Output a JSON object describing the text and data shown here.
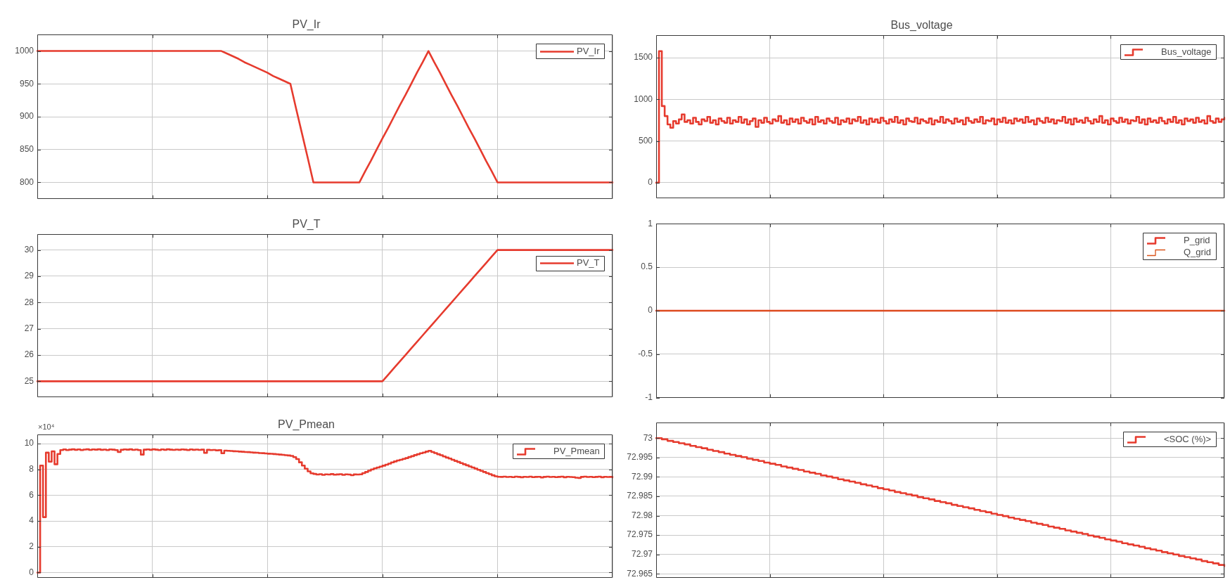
{
  "chart_data": [
    {
      "type": "line",
      "title": "PV_Ir",
      "categories": [
        null,
        null,
        null,
        null,
        null,
        null,
        null,
        null,
        null,
        null,
        null,
        null,
        null,
        null,
        null,
        null,
        null,
        null,
        null,
        null,
        null,
        null,
        null,
        null,
        null,
        null,
        null,
        null,
        null,
        null,
        null,
        null,
        null,
        null,
        null,
        null,
        null,
        null,
        null,
        null,
        null,
        null,
        null,
        null,
        null,
        null,
        null,
        null,
        null,
        null,
        null,
        null,
        null,
        null,
        null,
        null,
        null,
        null,
        null,
        null,
        null,
        null,
        null,
        null,
        null,
        null,
        null,
        null,
        null,
        null,
        null,
        null,
        null,
        null,
        null,
        null,
        null,
        null,
        null,
        null,
        null,
        null,
        null,
        null,
        null,
        null,
        null,
        null,
        null,
        null,
        null,
        null,
        null,
        null,
        null,
        null,
        null,
        null,
        null,
        null,
        null
      ],
      "series": [
        {
          "name": "PV_Ir",
          "color": "#e63b2e",
          "values": [
            1000,
            1000,
            1000,
            1000,
            1000,
            1000,
            1000,
            1000,
            1000,
            1000,
            1000,
            1000,
            1000,
            1000,
            1000,
            1000,
            1000,
            1000,
            1000,
            1000,
            1000,
            1000,
            1000,
            1000,
            1000,
            1000,
            1000,
            1000,
            1000,
            1000,
            1000,
            1000,
            1000,
            996,
            992,
            988,
            983,
            979,
            975,
            971,
            967,
            962,
            958,
            954,
            950,
            912,
            875,
            838,
            800,
            800,
            800,
            800,
            800,
            800,
            800,
            800,
            800,
            817,
            833,
            850,
            867,
            883,
            900,
            917,
            933,
            950,
            967,
            983,
            1000,
            983,
            967,
            950,
            933,
            917,
            900,
            883,
            867,
            850,
            833,
            817,
            800,
            800,
            800,
            800,
            800,
            800,
            800,
            800,
            800,
            800,
            800,
            800,
            800,
            800,
            800,
            800,
            800,
            800,
            800,
            800,
            800
          ]
        }
      ],
      "ylim": [
        775,
        1025
      ],
      "yticks": [
        800,
        850,
        900,
        950,
        1000
      ],
      "grid": true,
      "legend": "top right"
    },
    {
      "type": "step",
      "title": "Bus_voltage",
      "categories": [
        null,
        null,
        null,
        null,
        null,
        null,
        null,
        null,
        null,
        null,
        null,
        null,
        null,
        null,
        null,
        null,
        null,
        null,
        null,
        null,
        null,
        null,
        null,
        null,
        null,
        null,
        null,
        null,
        null,
        null,
        null,
        null,
        null,
        null,
        null,
        null,
        null,
        null,
        null,
        null,
        null,
        null,
        null,
        null,
        null,
        null,
        null,
        null,
        null,
        null,
        null,
        null,
        null,
        null,
        null,
        null,
        null,
        null,
        null,
        null,
        null,
        null,
        null,
        null,
        null,
        null,
        null,
        null,
        null,
        null,
        null,
        null,
        null,
        null,
        null,
        null,
        null,
        null,
        null,
        null,
        null,
        null,
        null,
        null,
        null,
        null,
        null,
        null,
        null,
        null,
        null,
        null,
        null,
        null,
        null,
        null,
        null,
        null,
        null,
        null,
        null,
        null,
        null,
        null,
        null,
        null,
        null,
        null,
        null,
        null,
        null,
        null,
        null,
        null,
        null,
        null,
        null,
        null,
        null,
        null,
        null,
        null,
        null,
        null,
        null,
        null,
        null,
        null,
        null,
        null,
        null,
        null,
        null,
        null,
        null,
        null,
        null,
        null,
        null,
        null,
        null,
        null,
        null,
        null,
        null,
        null,
        null,
        null,
        null,
        null,
        null,
        null,
        null,
        null,
        null,
        null,
        null,
        null,
        null,
        null,
        null,
        null,
        null,
        null,
        null,
        null,
        null,
        null,
        null,
        null,
        null,
        null,
        null,
        null,
        null,
        null,
        null,
        null,
        null,
        null,
        null,
        null,
        null,
        null,
        null,
        null,
        null,
        null,
        null,
        null,
        null,
        null,
        null,
        null,
        null,
        null,
        null,
        null,
        null,
        null,
        null
      ],
      "series": [
        {
          "name": "Bus_voltage",
          "color": "#e63b2e",
          "values": [
            0,
            1580,
            920,
            800,
            700,
            660,
            740,
            710,
            760,
            820,
            730,
            750,
            710,
            780,
            730,
            700,
            760,
            740,
            790,
            720,
            750,
            700,
            770,
            740,
            720,
            780,
            710,
            750,
            730,
            790,
            720,
            760,
            700,
            740,
            770,
            670,
            750,
            720,
            780,
            730,
            710,
            760,
            740,
            800,
            720,
            750,
            700,
            770,
            730,
            760,
            710,
            780,
            740,
            720,
            760,
            700,
            790,
            730,
            750,
            710,
            770,
            740,
            720,
            780,
            700,
            750,
            730,
            770,
            710,
            760,
            740,
            790,
            720,
            750,
            700,
            770,
            730,
            760,
            720,
            780,
            740,
            710,
            760,
            730,
            790,
            720,
            750,
            700,
            770,
            740,
            730,
            780,
            710,
            760,
            740,
            720,
            770,
            700,
            750,
            730,
            790,
            720,
            760,
            740,
            710,
            770,
            730,
            750,
            700,
            780,
            740,
            720,
            760,
            730,
            790,
            710,
            750,
            740,
            770,
            700,
            760,
            730,
            780,
            720,
            750,
            710,
            770,
            740,
            760,
            720,
            790,
            730,
            750,
            700,
            770,
            740,
            720,
            780,
            730,
            760,
            710,
            750,
            740,
            790,
            720,
            760,
            700,
            770,
            730,
            750,
            720,
            780,
            740,
            710,
            760,
            730,
            800,
            720,
            750,
            700,
            770,
            740,
            720,
            780,
            730,
            760,
            710,
            750,
            740,
            790,
            720,
            760,
            700,
            770,
            730,
            750,
            720,
            780,
            740,
            710,
            760,
            730,
            790,
            720,
            750,
            700,
            770,
            740,
            760,
            720,
            780,
            730,
            750,
            710,
            800,
            740,
            720,
            770,
            730,
            760,
            780
          ]
        }
      ],
      "ylim": [
        -185,
        1770
      ],
      "yticks": [
        0,
        500,
        1000,
        1500
      ],
      "grid": true,
      "legend": "top right"
    },
    {
      "type": "line",
      "title": "PV_T",
      "categories": [
        null,
        null,
        null,
        null,
        null,
        null,
        null,
        null,
        null,
        null,
        null,
        null,
        null,
        null,
        null,
        null,
        null,
        null,
        null,
        null,
        null,
        null,
        null,
        null,
        null,
        null,
        null,
        null,
        null,
        null,
        null,
        null,
        null,
        null,
        null,
        null,
        null,
        null,
        null,
        null,
        null,
        null,
        null,
        null,
        null,
        null,
        null,
        null,
        null,
        null,
        null,
        null,
        null,
        null,
        null,
        null,
        null,
        null,
        null,
        null,
        null,
        null,
        null,
        null,
        null,
        null,
        null,
        null,
        null,
        null,
        null,
        null,
        null,
        null,
        null,
        null,
        null,
        null,
        null,
        null,
        null,
        null,
        null,
        null,
        null,
        null,
        null,
        null,
        null,
        null,
        null,
        null,
        null,
        null,
        null,
        null,
        null,
        null,
        null,
        null,
        null
      ],
      "series": [
        {
          "name": "PV_T",
          "color": "#e63b2e",
          "values": [
            25,
            25,
            25,
            25,
            25,
            25,
            25,
            25,
            25,
            25,
            25,
            25,
            25,
            25,
            25,
            25,
            25,
            25,
            25,
            25,
            25,
            25,
            25,
            25,
            25,
            25,
            25,
            25,
            25,
            25,
            25,
            25,
            25,
            25,
            25,
            25,
            25,
            25,
            25,
            25,
            25,
            25,
            25,
            25,
            25,
            25,
            25,
            25,
            25,
            25,
            25,
            25,
            25,
            25,
            25,
            25,
            25,
            25,
            25,
            25,
            25,
            25.25,
            25.5,
            25.75,
            26,
            26.25,
            26.5,
            26.75,
            27,
            27.25,
            27.5,
            27.75,
            28,
            28.25,
            28.5,
            28.75,
            29,
            29.25,
            29.5,
            29.75,
            30,
            30,
            30,
            30,
            30,
            30,
            30,
            30,
            30,
            30,
            30,
            30,
            30,
            30,
            30,
            30,
            30,
            30,
            30,
            30,
            30
          ]
        }
      ],
      "ylim": [
        24.4,
        30.6
      ],
      "yticks": [
        25,
        26,
        27,
        28,
        29,
        30
      ],
      "grid": true,
      "legend": "top right"
    },
    {
      "type": "step",
      "categories": [
        null,
        null,
        null,
        null,
        null,
        null,
        null,
        null,
        null,
        null,
        null,
        null,
        null,
        null,
        null,
        null,
        null,
        null,
        null,
        null,
        null,
        null,
        null,
        null,
        null,
        null,
        null,
        null,
        null,
        null,
        null,
        null,
        null,
        null,
        null,
        null,
        null,
        null,
        null,
        null,
        null,
        null,
        null,
        null,
        null,
        null,
        null,
        null,
        null,
        null,
        null,
        null,
        null,
        null,
        null,
        null,
        null,
        null,
        null,
        null,
        null,
        null,
        null,
        null,
        null,
        null,
        null,
        null,
        null,
        null,
        null,
        null,
        null,
        null,
        null,
        null,
        null,
        null,
        null,
        null,
        null,
        null,
        null,
        null,
        null,
        null,
        null,
        null,
        null,
        null,
        null,
        null,
        null,
        null,
        null,
        null,
        null,
        null,
        null,
        null,
        null
      ],
      "series": [
        {
          "name": "P_grid",
          "color": "#e63b2e",
          "values": [
            0,
            0,
            0,
            0,
            0,
            0,
            0,
            0,
            0,
            0,
            0,
            0,
            0,
            0,
            0,
            0,
            0,
            0,
            0,
            0,
            0,
            0,
            0,
            0,
            0,
            0,
            0,
            0,
            0,
            0,
            0,
            0,
            0,
            0,
            0,
            0,
            0,
            0,
            0,
            0,
            0,
            0,
            0,
            0,
            0,
            0,
            0,
            0,
            0,
            0,
            0,
            0,
            0,
            0,
            0,
            0,
            0,
            0,
            0,
            0,
            0,
            0,
            0,
            0,
            0,
            0,
            0,
            0,
            0,
            0,
            0,
            0,
            0,
            0,
            0,
            0,
            0,
            0,
            0,
            0,
            0,
            0,
            0,
            0,
            0,
            0,
            0,
            0,
            0,
            0,
            0,
            0,
            0,
            0,
            0,
            0,
            0,
            0,
            0,
            0,
            0
          ]
        },
        {
          "name": "Q_grid",
          "color": "#d95319",
          "values": [
            0,
            0,
            0,
            0,
            0,
            0,
            0,
            0,
            0,
            0,
            0,
            0,
            0,
            0,
            0,
            0,
            0,
            0,
            0,
            0,
            0,
            0,
            0,
            0,
            0,
            0,
            0,
            0,
            0,
            0,
            0,
            0,
            0,
            0,
            0,
            0,
            0,
            0,
            0,
            0,
            0,
            0,
            0,
            0,
            0,
            0,
            0,
            0,
            0,
            0,
            0,
            0,
            0,
            0,
            0,
            0,
            0,
            0,
            0,
            0,
            0,
            0,
            0,
            0,
            0,
            0,
            0,
            0,
            0,
            0,
            0,
            0,
            0,
            0,
            0,
            0,
            0,
            0,
            0,
            0,
            0,
            0,
            0,
            0,
            0,
            0,
            0,
            0,
            0,
            0,
            0,
            0,
            0,
            0,
            0,
            0,
            0,
            0,
            0,
            0,
            0
          ]
        }
      ],
      "ylim": [
        -1,
        1
      ],
      "yticks": [
        -1,
        -0.5,
        0,
        0.5,
        1
      ],
      "grid": true,
      "legend": "top right"
    },
    {
      "type": "step",
      "title": "PV_Pmean",
      "annotations": [
        "×10⁴"
      ],
      "categories": [
        null,
        null,
        null,
        null,
        null,
        null,
        null,
        null,
        null,
        null,
        null,
        null,
        null,
        null,
        null,
        null,
        null,
        null,
        null,
        null,
        null,
        null,
        null,
        null,
        null,
        null,
        null,
        null,
        null,
        null,
        null,
        null,
        null,
        null,
        null,
        null,
        null,
        null,
        null,
        null,
        null,
        null,
        null,
        null,
        null,
        null,
        null,
        null,
        null,
        null,
        null,
        null,
        null,
        null,
        null,
        null,
        null,
        null,
        null,
        null,
        null,
        null,
        null,
        null,
        null,
        null,
        null,
        null,
        null,
        null,
        null,
        null,
        null,
        null,
        null,
        null,
        null,
        null,
        null,
        null,
        null,
        null,
        null,
        null,
        null,
        null,
        null,
        null,
        null,
        null,
        null,
        null,
        null,
        null,
        null,
        null,
        null,
        null,
        null,
        null,
        null,
        null,
        null,
        null,
        null,
        null,
        null,
        null,
        null,
        null,
        null,
        null,
        null,
        null,
        null,
        null,
        null,
        null,
        null,
        null,
        null,
        null,
        null,
        null,
        null,
        null,
        null,
        null,
        null,
        null,
        null,
        null,
        null,
        null,
        null,
        null,
        null,
        null,
        null,
        null,
        null,
        null,
        null,
        null,
        null,
        null,
        null,
        null,
        null,
        null,
        null,
        null,
        null,
        null,
        null,
        null,
        null,
        null,
        null,
        null,
        null,
        null,
        null,
        null,
        null,
        null,
        null,
        null,
        null,
        null,
        null,
        null,
        null,
        null,
        null,
        null,
        null,
        null,
        null,
        null,
        null,
        null,
        null,
        null,
        null,
        null,
        null,
        null,
        null,
        null,
        null,
        null,
        null,
        null,
        null,
        null,
        null,
        null,
        null,
        null,
        null
      ],
      "series": [
        {
          "name": "PV_Pmean",
          "color": "#e63b2e",
          "values": [
            0,
            8.3,
            4.3,
            9.3,
            8.6,
            9.4,
            8.4,
            9.2,
            9.5,
            9.55,
            9.5,
            9.53,
            9.56,
            9.52,
            9.55,
            9.5,
            9.54,
            9.56,
            9.51,
            9.55,
            9.53,
            9.56,
            9.52,
            9.54,
            9.5,
            9.55,
            9.53,
            9.5,
            9.35,
            9.52,
            9.55,
            9.53,
            9.56,
            9.51,
            9.54,
            9.5,
            9.15,
            9.53,
            9.55,
            9.52,
            9.56,
            9.53,
            9.5,
            9.55,
            9.52,
            9.56,
            9.53,
            9.51,
            9.54,
            9.52,
            9.55,
            9.53,
            9.5,
            9.55,
            9.52,
            9.54,
            9.51,
            9.53,
            9.28,
            9.52,
            9.5,
            9.51,
            9.48,
            9.49,
            9.25,
            9.46,
            9.44,
            9.43,
            9.41,
            9.4,
            9.38,
            9.37,
            9.35,
            9.34,
            9.32,
            9.3,
            9.29,
            9.27,
            9.26,
            9.24,
            9.22,
            9.21,
            9.19,
            9.17,
            9.15,
            9.13,
            9.1,
            9.08,
            9.05,
            8.95,
            8.8,
            8.55,
            8.3,
            8.05,
            7.85,
            7.7,
            7.65,
            7.6,
            7.63,
            7.58,
            7.62,
            7.6,
            7.64,
            7.59,
            7.61,
            7.63,
            7.58,
            7.62,
            7.6,
            7.55,
            7.61,
            7.6,
            7.62,
            7.71,
            7.8,
            7.9,
            8,
            8.08,
            8.15,
            8.22,
            8.29,
            8.37,
            8.45,
            8.54,
            8.62,
            8.69,
            8.75,
            8.82,
            8.88,
            8.96,
            9.03,
            9.11,
            9.18,
            9.25,
            9.31,
            9.38,
            9.44,
            9.35,
            9.27,
            9.18,
            9.1,
            9.01,
            8.92,
            8.84,
            8.75,
            8.66,
            8.58,
            8.49,
            8.4,
            8.32,
            8.23,
            8.15,
            8.06,
            7.97,
            7.89,
            7.8,
            7.71,
            7.63,
            7.54,
            7.47,
            7.43,
            7.42,
            7.44,
            7.41,
            7.43,
            7.4,
            7.44,
            7.42,
            7.39,
            7.43,
            7.41,
            7.44,
            7.4,
            7.42,
            7.43,
            7.38,
            7.42,
            7.44,
            7.41,
            7.43,
            7.4,
            7.42,
            7.44,
            7.39,
            7.43,
            7.41,
            7.4,
            7.36,
            7.34,
            7.42,
            7.44,
            7.41,
            7.43,
            7.4,
            7.42,
            7.44,
            7.39,
            7.43,
            7.41,
            7.42,
            7.38
          ]
        }
      ],
      "ylim": [
        -0.4,
        10.7
      ],
      "yticks": [
        0,
        2,
        4,
        6,
        8,
        10
      ],
      "grid": true,
      "legend": "top right"
    },
    {
      "type": "step",
      "categories": [
        null,
        null,
        null,
        null,
        null,
        null,
        null,
        null,
        null,
        null,
        null,
        null,
        null,
        null,
        null,
        null,
        null,
        null,
        null,
        null,
        null,
        null,
        null,
        null,
        null,
        null,
        null,
        null,
        null,
        null,
        null,
        null,
        null,
        null,
        null,
        null,
        null,
        null,
        null,
        null,
        null,
        null,
        null,
        null,
        null,
        null,
        null,
        null,
        null,
        null,
        null,
        null,
        null,
        null,
        null,
        null,
        null,
        null,
        null,
        null,
        null,
        null,
        null,
        null,
        null,
        null,
        null,
        null,
        null,
        null,
        null,
        null,
        null,
        null,
        null,
        null,
        null,
        null,
        null,
        null,
        null,
        null,
        null,
        null,
        null,
        null,
        null,
        null,
        null,
        null,
        null,
        null,
        null,
        null,
        null,
        null,
        null,
        null,
        null,
        null,
        null
      ],
      "series": [
        {
          "name": "<SOC (%)>",
          "color": "#e63b2e",
          "values": [
            73,
            72.9997,
            72.9993,
            72.999,
            72.9987,
            72.9984,
            72.998,
            72.9977,
            72.9974,
            72.997,
            72.9967,
            72.9964,
            72.996,
            72.9957,
            72.9954,
            72.9951,
            72.9947,
            72.9944,
            72.9941,
            72.9937,
            72.9934,
            72.9931,
            72.9927,
            72.9924,
            72.9921,
            72.9918,
            72.9914,
            72.9911,
            72.9908,
            72.9904,
            72.9901,
            72.9898,
            72.9894,
            72.9891,
            72.9888,
            72.9885,
            72.9881,
            72.9878,
            72.9875,
            72.9871,
            72.9868,
            72.9865,
            72.9861,
            72.9858,
            72.9855,
            72.9852,
            72.9848,
            72.9845,
            72.9842,
            72.9838,
            72.9835,
            72.9832,
            72.9828,
            72.9825,
            72.9822,
            72.9819,
            72.9815,
            72.9812,
            72.9809,
            72.9805,
            72.9802,
            72.9799,
            72.9795,
            72.9792,
            72.9789,
            72.9786,
            72.9782,
            72.9779,
            72.9776,
            72.9772,
            72.9769,
            72.9766,
            72.9762,
            72.9759,
            72.9756,
            72.9753,
            72.9749,
            72.9746,
            72.9743,
            72.9739,
            72.9736,
            72.9733,
            72.9729,
            72.9726,
            72.9723,
            72.972,
            72.9716,
            72.9713,
            72.971,
            72.9706,
            72.9703,
            72.97,
            72.9696,
            72.9693,
            72.969,
            72.9687,
            72.9683,
            72.968,
            72.9677,
            72.9673,
            72.967
          ]
        }
      ],
      "ylim": [
        72.964,
        73.004
      ],
      "yticks": [
        72.965,
        72.97,
        72.975,
        72.98,
        72.985,
        72.99,
        72.995,
        73
      ],
      "grid": true,
      "legend": "top right"
    }
  ]
}
